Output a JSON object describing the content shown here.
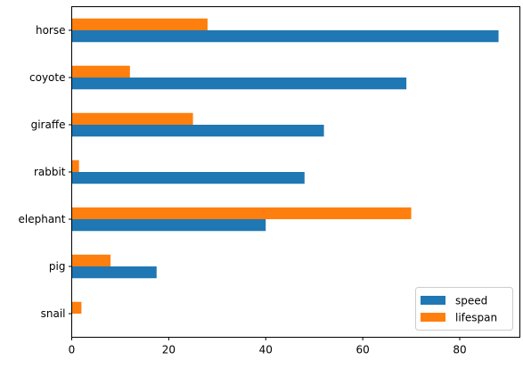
{
  "chart_data": {
    "type": "bar",
    "orientation": "horizontal",
    "categories": [
      "snail",
      "pig",
      "elephant",
      "rabbit",
      "giraffe",
      "coyote",
      "horse"
    ],
    "series": [
      {
        "name": "speed",
        "color": "#1f77b4",
        "values": [
          0.1,
          17.5,
          40,
          48,
          52,
          69,
          88
        ]
      },
      {
        "name": "lifespan",
        "color": "#ff7f0e",
        "values": [
          2,
          8,
          70,
          1.5,
          25,
          12,
          28
        ]
      }
    ],
    "xlim": [
      0,
      92.4
    ],
    "xticks": [
      0,
      20,
      40,
      60,
      80
    ],
    "grid": false,
    "legend_position": "lower-right"
  }
}
